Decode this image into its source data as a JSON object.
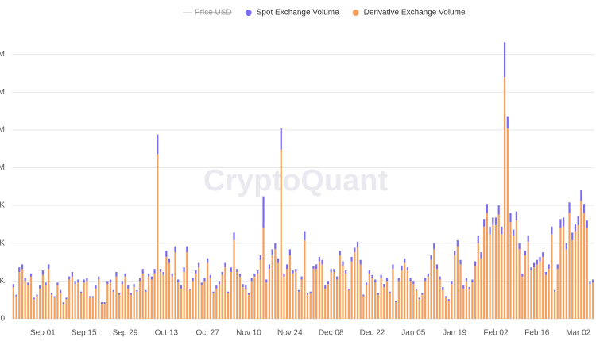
{
  "chart_data": {
    "type": "stacked-bar",
    "watermark": "CryptoQuant",
    "categories": [
      null,
      null,
      null,
      null,
      null,
      null,
      null,
      null,
      null,
      null,
      "Sep 01",
      null,
      null,
      null,
      null,
      null,
      null,
      null,
      null,
      null,
      null,
      null,
      null,
      null,
      "Sep 15",
      null,
      null,
      null,
      null,
      null,
      null,
      null,
      null,
      null,
      null,
      null,
      null,
      null,
      "Sep 29",
      null,
      null,
      null,
      null,
      null,
      null,
      null,
      null,
      null,
      null,
      null,
      null,
      null,
      "Oct 13",
      null,
      null,
      null,
      null,
      null,
      null,
      null,
      null,
      null,
      null,
      null,
      null,
      null,
      "Oct 27",
      null,
      null,
      null,
      null,
      null,
      null,
      null,
      null,
      null,
      null,
      null,
      null,
      null,
      "Nov 10",
      null,
      null,
      null,
      null,
      null,
      null,
      null,
      null,
      null,
      null,
      null,
      null,
      null,
      "Nov 24",
      null,
      null,
      null,
      null,
      null,
      null,
      null,
      null,
      null,
      null,
      null,
      null,
      null,
      "Dec 08",
      null,
      null,
      null,
      null,
      null,
      null,
      null,
      null,
      null,
      null,
      null,
      null,
      null,
      "Dec 22",
      null,
      null,
      null,
      null,
      null,
      null,
      null,
      null,
      null,
      null,
      null,
      null,
      null,
      "Jan 05",
      null,
      null,
      null,
      null,
      null,
      null,
      null,
      null,
      null,
      null,
      null,
      null,
      null,
      "Jan 19",
      null,
      null,
      null,
      null,
      null,
      null,
      null,
      null,
      null,
      null,
      null,
      null,
      null,
      "Feb 02",
      null,
      null,
      null,
      null,
      null,
      null,
      null,
      null,
      null,
      null,
      null,
      null,
      null,
      "Feb 16",
      null,
      null,
      null,
      null,
      null,
      null,
      null,
      null,
      null,
      null,
      null,
      null,
      null,
      "Mar 02",
      null,
      null,
      null,
      null,
      null
    ],
    "series": [
      {
        "name": "Price USD",
        "color": "#c4c4c4",
        "hidden": true
      },
      {
        "name": "Spot Exchange Volume",
        "color": "#7c6cf2",
        "values": [
          20000,
          10000,
          30000,
          30000,
          20000,
          20000,
          20000,
          10000,
          10000,
          20000,
          30000,
          20000,
          30000,
          10000,
          10000,
          20000,
          20000,
          10000,
          10000,
          20000,
          30000,
          20000,
          20000,
          10000,
          20000,
          20000,
          10000,
          10000,
          20000,
          20000,
          10000,
          10000,
          20000,
          20000,
          10000,
          30000,
          10000,
          20000,
          20000,
          20000,
          10000,
          20000,
          10000,
          20000,
          30000,
          10000,
          20000,
          20000,
          30000,
          130000,
          20000,
          20000,
          40000,
          30000,
          20000,
          40000,
          20000,
          20000,
          30000,
          40000,
          10000,
          20000,
          20000,
          30000,
          20000,
          20000,
          30000,
          20000,
          10000,
          20000,
          20000,
          20000,
          30000,
          10000,
          30000,
          50000,
          20000,
          20000,
          20000,
          20000,
          10000,
          20000,
          20000,
          20000,
          30000,
          210000,
          20000,
          30000,
          40000,
          40000,
          30000,
          140000,
          20000,
          30000,
          40000,
          20000,
          20000,
          10000,
          20000,
          60000,
          10000,
          10000,
          20000,
          30000,
          30000,
          30000,
          20000,
          20000,
          20000,
          20000,
          20000,
          30000,
          30000,
          20000,
          10000,
          30000,
          30000,
          40000,
          30000,
          10000,
          20000,
          20000,
          20000,
          20000,
          10000,
          20000,
          20000,
          20000,
          10000,
          30000,
          10000,
          20000,
          30000,
          30000,
          20000,
          20000,
          20000,
          10000,
          10000,
          10000,
          20000,
          20000,
          30000,
          40000,
          30000,
          20000,
          20000,
          10000,
          10000,
          20000,
          30000,
          40000,
          30000,
          20000,
          20000,
          10000,
          20000,
          30000,
          50000,
          40000,
          50000,
          60000,
          50000,
          50000,
          50000,
          60000,
          50000,
          230000,
          80000,
          60000,
          40000,
          60000,
          40000,
          20000,
          30000,
          40000,
          20000,
          30000,
          30000,
          30000,
          30000,
          20000,
          30000,
          50000,
          10000,
          30000,
          60000,
          60000,
          40000,
          70000,
          50000,
          50000,
          60000,
          70000,
          60000,
          50000,
          20000,
          20000
        ]
      },
      {
        "name": "Derivative Exchange Volume",
        "color": "#f5a05c",
        "values": [
          210000,
          150000,
          310000,
          330000,
          250000,
          220000,
          280000,
          130000,
          150000,
          200000,
          290000,
          220000,
          330000,
          160000,
          140000,
          220000,
          170000,
          100000,
          130000,
          260000,
          280000,
          230000,
          240000,
          170000,
          240000,
          250000,
          140000,
          140000,
          200000,
          260000,
          100000,
          100000,
          230000,
          240000,
          180000,
          280000,
          160000,
          230000,
          280000,
          200000,
          160000,
          210000,
          180000,
          250000,
          300000,
          180000,
          280000,
          260000,
          300000,
          1090000,
          310000,
          290000,
          410000,
          370000,
          280000,
          440000,
          240000,
          200000,
          310000,
          440000,
          190000,
          250000,
          300000,
          340000,
          220000,
          250000,
          370000,
          270000,
          170000,
          200000,
          230000,
          290000,
          340000,
          170000,
          310000,
          520000,
          310000,
          280000,
          210000,
          200000,
          160000,
          250000,
          280000,
          300000,
          390000,
          600000,
          240000,
          330000,
          420000,
          460000,
          370000,
          1120000,
          280000,
          330000,
          420000,
          300000,
          310000,
          180000,
          260000,
          520000,
          160000,
          170000,
          330000,
          330000,
          380000,
          360000,
          200000,
          230000,
          310000,
          310000,
          260000,
          420000,
          350000,
          300000,
          190000,
          380000,
          440000,
          470000,
          360000,
          150000,
          220000,
          300000,
          270000,
          240000,
          160000,
          270000,
          210000,
          250000,
          170000,
          330000,
          110000,
          250000,
          320000,
          370000,
          320000,
          250000,
          230000,
          190000,
          130000,
          160000,
          250000,
          280000,
          390000,
          460000,
          330000,
          260000,
          190000,
          140000,
          120000,
          230000,
          420000,
          480000,
          360000,
          200000,
          250000,
          200000,
          240000,
          350000,
          500000,
          400000,
          610000,
          700000,
          560000,
          620000,
          620000,
          690000,
          560000,
          1600000,
          1260000,
          640000,
          550000,
          650000,
          460000,
          280000,
          420000,
          510000,
          320000,
          340000,
          360000,
          380000,
          410000,
          290000,
          330000,
          560000,
          180000,
          330000,
          600000,
          610000,
          460000,
          700000,
          520000,
          580000,
          620000,
          780000,
          700000,
          600000,
          230000,
          240000
        ]
      }
    ],
    "ylim": [
      0,
      1900000
    ],
    "yticks": [
      0,
      {
        "value": 250000,
        "label": "K"
      },
      {
        "value": 500000,
        "label": "K"
      },
      {
        "value": 750000,
        "label": "K"
      },
      {
        "value": 1000000,
        "label": "M"
      },
      {
        "value": 1250000,
        "label": "M"
      },
      {
        "value": 1500000,
        "label": "M"
      },
      {
        "value": 1750000,
        "label": "M"
      }
    ],
    "grid": true
  }
}
